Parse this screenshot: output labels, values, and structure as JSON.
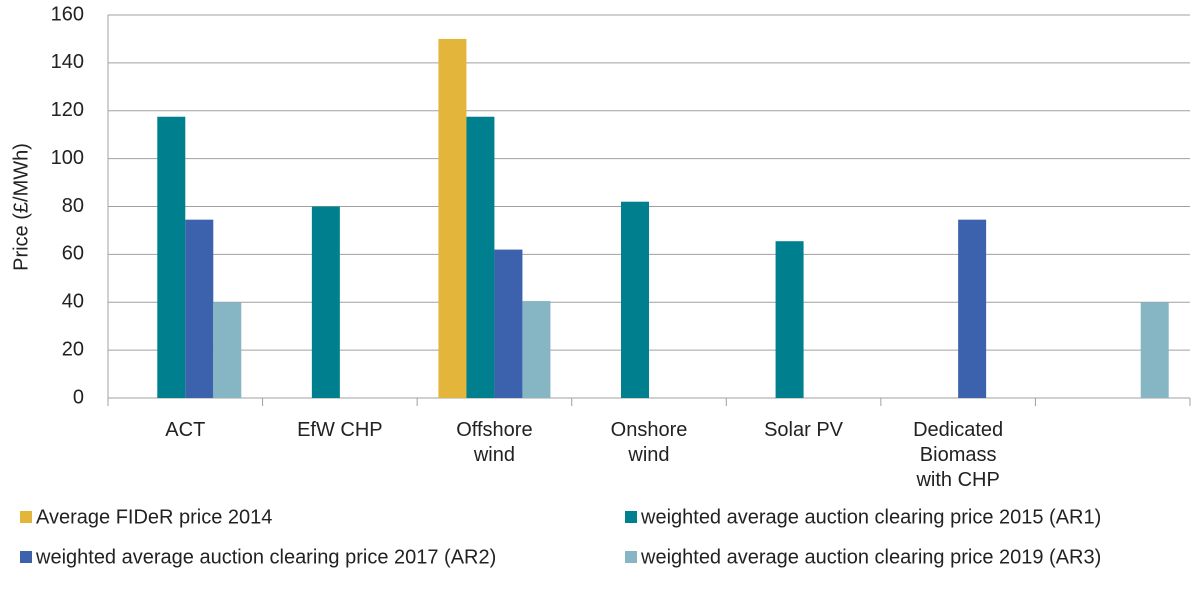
{
  "chart_data": {
    "type": "bar",
    "y_label": "Price (£/MWh)",
    "categories": [
      "ACT",
      "EfW CHP",
      "Offshore wind",
      "Onshore wind",
      "Solar PV",
      "Dedicated Biomass with CHP",
      null
    ],
    "series": [
      {
        "name": "Average FIDeR price 2014",
        "color": "#e3b53a",
        "values": [
          null,
          null,
          150,
          null,
          null,
          null,
          null
        ]
      },
      {
        "name": "weighted average auction clearing price 2015 (AR1)",
        "color": "#00808f",
        "values": [
          117.5,
          80,
          117.5,
          82,
          65.5,
          null,
          null
        ]
      },
      {
        "name": "weighted average auction clearing price 2017 (AR2)",
        "color": "#3c62ad",
        "values": [
          74.5,
          null,
          62,
          null,
          null,
          74.5,
          null
        ]
      },
      {
        "name": "weighted average auction clearing price 2019 (AR3)",
        "color": "#86b6c4",
        "values": [
          40,
          null,
          40.5,
          null,
          null,
          null,
          40
        ]
      }
    ],
    "ylim": [
      0,
      160
    ],
    "yticks": [
      0,
      20,
      40,
      60,
      80,
      100,
      120,
      140,
      160
    ],
    "grid": true,
    "legend": "bottom"
  }
}
